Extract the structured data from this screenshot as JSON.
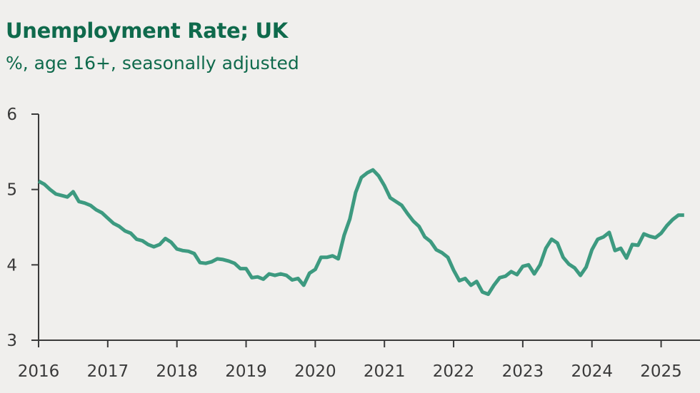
{
  "colors": {
    "title": "#0f6a4c",
    "line": "#3d9a80",
    "axis": "#3a3a3a",
    "background": "#f0efed"
  },
  "chart_data": {
    "type": "line",
    "title": "Unemployment Rate; UK",
    "subtitle": "%, age 16+, seasonally adjusted",
    "xlabel": "",
    "ylabel": "",
    "ylim": [
      3,
      6
    ],
    "yticks": [
      "3",
      "4",
      "5",
      "6"
    ],
    "xticks": [
      "2016",
      "2017",
      "2018",
      "2019",
      "2020",
      "2021",
      "2022",
      "2023",
      "2024",
      "2025"
    ],
    "grid": false,
    "x": [
      "2016-01",
      "2016-02",
      "2016-03",
      "2016-04",
      "2016-05",
      "2016-06",
      "2016-07",
      "2016-08",
      "2016-09",
      "2016-10",
      "2016-11",
      "2016-12",
      "2017-01",
      "2017-02",
      "2017-03",
      "2017-04",
      "2017-05",
      "2017-06",
      "2017-07",
      "2017-08",
      "2017-09",
      "2017-10",
      "2017-11",
      "2017-12",
      "2018-01",
      "2018-02",
      "2018-03",
      "2018-04",
      "2018-05",
      "2018-06",
      "2018-07",
      "2018-08",
      "2018-09",
      "2018-10",
      "2018-11",
      "2018-12",
      "2019-01",
      "2019-02",
      "2019-03",
      "2019-04",
      "2019-05",
      "2019-06",
      "2019-07",
      "2019-08",
      "2019-09",
      "2019-10",
      "2019-11",
      "2019-12",
      "2020-01",
      "2020-02",
      "2020-03",
      "2020-04",
      "2020-05",
      "2020-06",
      "2020-07",
      "2020-08",
      "2020-09",
      "2020-10",
      "2020-11",
      "2020-12",
      "2021-01",
      "2021-02",
      "2021-03",
      "2021-04",
      "2021-05",
      "2021-06",
      "2021-07",
      "2021-08",
      "2021-09",
      "2021-10",
      "2021-11",
      "2021-12",
      "2022-01",
      "2022-02",
      "2022-03",
      "2022-04",
      "2022-05",
      "2022-06",
      "2022-07",
      "2022-08",
      "2022-09",
      "2022-10",
      "2022-11",
      "2022-12",
      "2023-01",
      "2023-02",
      "2023-03",
      "2023-04",
      "2023-05",
      "2023-06",
      "2023-07",
      "2023-08",
      "2023-09",
      "2023-10",
      "2023-11",
      "2023-12",
      "2024-01",
      "2024-02",
      "2024-03",
      "2024-04",
      "2024-05",
      "2024-06",
      "2024-07",
      "2024-08",
      "2024-09",
      "2024-10",
      "2024-11",
      "2024-12",
      "2025-01",
      "2025-02",
      "2025-03",
      "2025-04",
      "2025-05"
    ],
    "series": [
      {
        "values": [
          5.11,
          5.07,
          5.0,
          4.94,
          4.92,
          4.9,
          4.97,
          4.84,
          4.82,
          4.79,
          4.73,
          4.69,
          4.62,
          4.55,
          4.51,
          4.45,
          4.42,
          4.34,
          4.32,
          4.27,
          4.24,
          4.27,
          4.35,
          4.3,
          4.21,
          4.19,
          4.18,
          4.15,
          4.03,
          4.02,
          4.04,
          4.08,
          4.07,
          4.05,
          4.02,
          3.95,
          3.95,
          3.83,
          3.84,
          3.81,
          3.88,
          3.86,
          3.88,
          3.86,
          3.8,
          3.82,
          3.73,
          3.89,
          3.94,
          4.1,
          4.1,
          4.12,
          4.08,
          4.39,
          4.61,
          4.96,
          5.16,
          5.22,
          5.26,
          5.18,
          5.05,
          4.89,
          4.84,
          4.79,
          4.68,
          4.58,
          4.51,
          4.37,
          4.31,
          4.2,
          4.16,
          4.1,
          3.93,
          3.79,
          3.82,
          3.73,
          3.78,
          3.64,
          3.61,
          3.73,
          3.83,
          3.85,
          3.91,
          3.87,
          3.98,
          4.0,
          3.88,
          4.0,
          4.22,
          4.34,
          4.29,
          4.1,
          4.01,
          3.96,
          3.86,
          3.97,
          4.2,
          4.34,
          4.37,
          4.43,
          4.19,
          4.22,
          4.09,
          4.27,
          4.26,
          4.41,
          4.38,
          4.36,
          4.42,
          4.52,
          4.6,
          4.66,
          4.66
        ]
      }
    ]
  }
}
